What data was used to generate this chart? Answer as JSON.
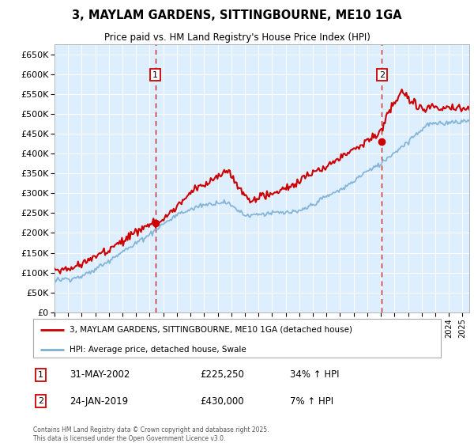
{
  "title": "3, MAYLAM GARDENS, SITTINGBOURNE, ME10 1GA",
  "subtitle": "Price paid vs. HM Land Registry's House Price Index (HPI)",
  "ylim": [
    0,
    675000
  ],
  "yticks": [
    0,
    50000,
    100000,
    150000,
    200000,
    250000,
    300000,
    350000,
    400000,
    450000,
    500000,
    550000,
    600000,
    650000
  ],
  "hpi_color": "#7bafd4",
  "price_color": "#cc0000",
  "bg_color": "#ddeeff",
  "grid_color": "#ffffff",
  "sale1_x": 2002.42,
  "sale1_price": 225250,
  "sale2_x": 2019.07,
  "sale2_price": 430000,
  "legend_label_price": "3, MAYLAM GARDENS, SITTINGBOURNE, ME10 1GA (detached house)",
  "legend_label_hpi": "HPI: Average price, detached house, Swale",
  "footer": "Contains HM Land Registry data © Crown copyright and database right 2025.\nThis data is licensed under the Open Government Licence v3.0.",
  "xmin": 1995,
  "xmax": 2025.5
}
